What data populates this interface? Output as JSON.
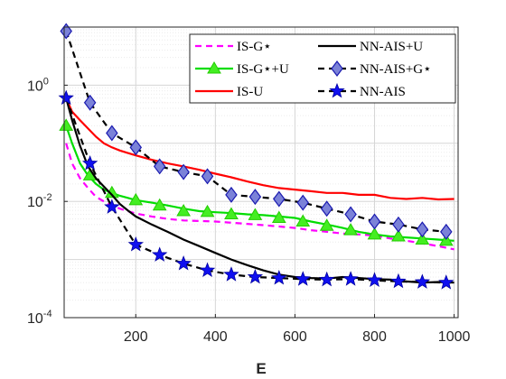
{
  "chart_data": {
    "type": "line",
    "title": "",
    "xlabel": "E",
    "ylabel": "",
    "yscale": "log",
    "xlim": [
      20,
      1010
    ],
    "ylim": [
      0.0001,
      10
    ],
    "xticks": [
      200,
      400,
      600,
      800,
      1000
    ],
    "yticks": [
      {
        "value": 0.0001,
        "base": "10",
        "exp": "-4"
      },
      {
        "value": 0.01,
        "base": "10",
        "exp": "-2"
      },
      {
        "value": 1,
        "base": "10",
        "exp": "0"
      }
    ],
    "grid": true,
    "legend_position": "top-right",
    "series": [
      {
        "name": "IS-G⋆",
        "color": "#ff00ff",
        "style": "dashed",
        "marker": "none",
        "x": [
          25,
          40,
          60,
          80,
          100,
          120,
          140,
          160,
          180,
          200,
          240,
          280,
          320,
          360,
          400,
          440,
          480,
          520,
          560,
          600,
          640,
          680,
          720,
          760,
          800,
          840,
          880,
          920,
          960,
          1000
        ],
        "y": [
          0.1,
          0.045,
          0.025,
          0.017,
          0.012,
          0.01,
          0.0085,
          0.0075,
          0.0068,
          0.0062,
          0.0055,
          0.005,
          0.0047,
          0.0046,
          0.0045,
          0.0043,
          0.0041,
          0.0039,
          0.0037,
          0.0035,
          0.0032,
          0.003,
          0.0028,
          0.0027,
          0.0026,
          0.0023,
          0.0021,
          0.0019,
          0.0017,
          0.0015
        ]
      },
      {
        "name": "IS-G⋆+U",
        "color": "#00dd00",
        "style": "solid",
        "marker": "triangle",
        "x": [
          25,
          40,
          60,
          80,
          100,
          120,
          140,
          160,
          180,
          200,
          240,
          280,
          320,
          360,
          400,
          440,
          480,
          520,
          560,
          600,
          640,
          680,
          720,
          760,
          800,
          840,
          880,
          920,
          960,
          1000
        ],
        "y": [
          0.2,
          0.1,
          0.045,
          0.028,
          0.02,
          0.016,
          0.014,
          0.0125,
          0.0115,
          0.0105,
          0.0095,
          0.0085,
          0.0075,
          0.0068,
          0.0065,
          0.0063,
          0.006,
          0.0058,
          0.0055,
          0.0052,
          0.0045,
          0.004,
          0.0035,
          0.003,
          0.0027,
          0.0025,
          0.0024,
          0.0023,
          0.0022,
          0.0021
        ],
        "marker_x": [
          25,
          85,
          140,
          200,
          260,
          320,
          380,
          440,
          500,
          560,
          620,
          680,
          740,
          800,
          860,
          920,
          980
        ],
        "marker_y": [
          0.2,
          0.028,
          0.014,
          0.0105,
          0.0085,
          0.0068,
          0.0066,
          0.006,
          0.0058,
          0.0052,
          0.0045,
          0.0038,
          0.0032,
          0.0027,
          0.0025,
          0.0022,
          0.0021
        ]
      },
      {
        "name": "IS-U",
        "color": "#ff0000",
        "style": "solid",
        "marker": "none",
        "x": [
          25,
          40,
          60,
          80,
          100,
          120,
          140,
          160,
          180,
          200,
          240,
          280,
          320,
          360,
          400,
          440,
          480,
          520,
          560,
          600,
          640,
          680,
          720,
          760,
          800,
          840,
          880,
          920,
          960,
          1000
        ],
        "y": [
          0.6,
          0.35,
          0.25,
          0.18,
          0.13,
          0.1,
          0.085,
          0.075,
          0.068,
          0.062,
          0.052,
          0.045,
          0.04,
          0.035,
          0.03,
          0.026,
          0.022,
          0.019,
          0.017,
          0.016,
          0.015,
          0.014,
          0.014,
          0.013,
          0.013,
          0.0115,
          0.011,
          0.0115,
          0.0108,
          0.011
        ]
      },
      {
        "name": "NN-AIS+U",
        "color": "#000000",
        "style": "solid",
        "marker": "none",
        "x": [
          25,
          40,
          60,
          80,
          100,
          120,
          140,
          160,
          180,
          200,
          240,
          280,
          320,
          360,
          400,
          440,
          480,
          520,
          560,
          600,
          640,
          680,
          720,
          760,
          800,
          840,
          880,
          920,
          960,
          1000
        ],
        "y": [
          0.6,
          0.25,
          0.09,
          0.04,
          0.025,
          0.018,
          0.013,
          0.009,
          0.007,
          0.0055,
          0.004,
          0.003,
          0.0022,
          0.0017,
          0.0013,
          0.001,
          0.0008,
          0.00065,
          0.00055,
          0.0005,
          0.00048,
          0.00047,
          0.0005,
          0.00048,
          0.00046,
          0.00045,
          0.00042,
          0.0004,
          0.00041,
          0.0004
        ]
      },
      {
        "name": "NN-AIS+G⋆",
        "color": "#000000",
        "style": "dashed",
        "marker": "diamond",
        "x": [
          25,
          85,
          140,
          200,
          260,
          320,
          380,
          440,
          500,
          560,
          620,
          680,
          740,
          800,
          860,
          920,
          980,
          1000
        ],
        "y": [
          8.5,
          0.5,
          0.15,
          0.085,
          0.04,
          0.032,
          0.027,
          0.013,
          0.012,
          0.011,
          0.0095,
          0.0075,
          0.006,
          0.0045,
          0.004,
          0.0033,
          0.003,
          0.0029
        ]
      },
      {
        "name": "NN-AIS",
        "color": "#000000",
        "style": "dashed",
        "marker": "star",
        "x": [
          25,
          85,
          140,
          200,
          260,
          320,
          380,
          440,
          500,
          560,
          620,
          680,
          740,
          800,
          860,
          920,
          980,
          1000
        ],
        "y": [
          0.6,
          0.045,
          0.008,
          0.0018,
          0.0012,
          0.00085,
          0.00065,
          0.00055,
          0.0005,
          0.00048,
          0.00046,
          0.00045,
          0.00046,
          0.00044,
          0.00042,
          0.00041,
          0.0004,
          0.0004
        ]
      }
    ]
  }
}
